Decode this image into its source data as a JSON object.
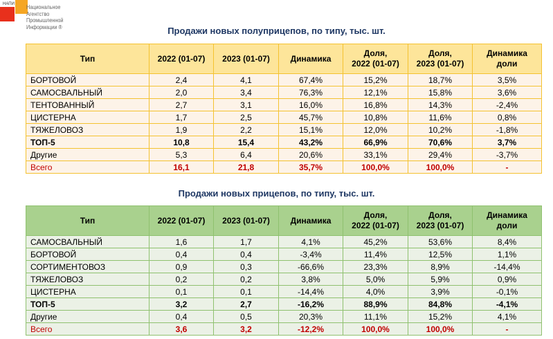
{
  "logo": {
    "small": "НАПИ",
    "text": [
      "Национальное",
      "Агентство",
      "Промышленной",
      "Информации ®"
    ]
  },
  "columns": [
    "Тип",
    "2022 (01-07)",
    "2023 (01-07)",
    "Динамика",
    "Доля,\n2022 (01-07)",
    "Доля,\n2023 (01-07)",
    "Динамика\nдоли"
  ],
  "tables": [
    {
      "title": "Продажи новых полуприцепов, по типу, тыс. шт.",
      "rows": [
        [
          "БОРТОВОЙ",
          "2,4",
          "4,1",
          "67,4%",
          "15,2%",
          "18,7%",
          "3,5%"
        ],
        [
          "САМОСВАЛЬНЫЙ",
          "2,0",
          "3,4",
          "76,3%",
          "12,1%",
          "15,8%",
          "3,6%"
        ],
        [
          "ТЕНТОВАННЫЙ",
          "2,7",
          "3,1",
          "16,0%",
          "16,8%",
          "14,3%",
          "-2,4%"
        ],
        [
          "ЦИСТЕРНА",
          "1,7",
          "2,5",
          "45,7%",
          "10,8%",
          "11,6%",
          "0,8%"
        ],
        [
          "ТЯЖЕЛОВОЗ",
          "1,9",
          "2,2",
          "15,1%",
          "12,0%",
          "10,2%",
          "-1,8%"
        ],
        [
          "ТОП-5",
          "10,8",
          "15,4",
          "43,2%",
          "66,9%",
          "70,6%",
          "3,7%"
        ],
        [
          "Другие",
          "5,3",
          "6,4",
          "20,6%",
          "33,1%",
          "29,4%",
          "-3,7%"
        ],
        [
          "Всего",
          "16,1",
          "21,8",
          "35,7%",
          "100,0%",
          "100,0%",
          "-"
        ]
      ]
    },
    {
      "title": "Продажи новых прицепов, по типу, тыс. шт.",
      "rows": [
        [
          "САМОСВАЛЬНЫЙ",
          "1,6",
          "1,7",
          "4,1%",
          "45,2%",
          "53,6%",
          "8,4%"
        ],
        [
          "БОРТОВОЙ",
          "0,4",
          "0,4",
          "-3,4%",
          "11,4%",
          "12,5%",
          "1,1%"
        ],
        [
          "СОРТИМЕНТОВОЗ",
          "0,9",
          "0,3",
          "-66,6%",
          "23,3%",
          "8,9%",
          "-14,4%"
        ],
        [
          "ТЯЖЕЛОВОЗ",
          "0,2",
          "0,2",
          "3,8%",
          "5,0%",
          "5,9%",
          "0,9%"
        ],
        [
          "ЦИСТЕРНА",
          "0,1",
          "0,1",
          "-14,4%",
          "4,0%",
          "3,9%",
          "-0,1%"
        ],
        [
          "ТОП-5",
          "3,2",
          "2,7",
          "-16,2%",
          "88,9%",
          "84,8%",
          "-4,1%"
        ],
        [
          "Другие",
          "0,4",
          "0,5",
          "20,3%",
          "11,1%",
          "15,2%",
          "4,1%"
        ],
        [
          "Всего",
          "3,6",
          "3,2",
          "-12,2%",
          "100,0%",
          "100,0%",
          "-"
        ]
      ]
    }
  ]
}
